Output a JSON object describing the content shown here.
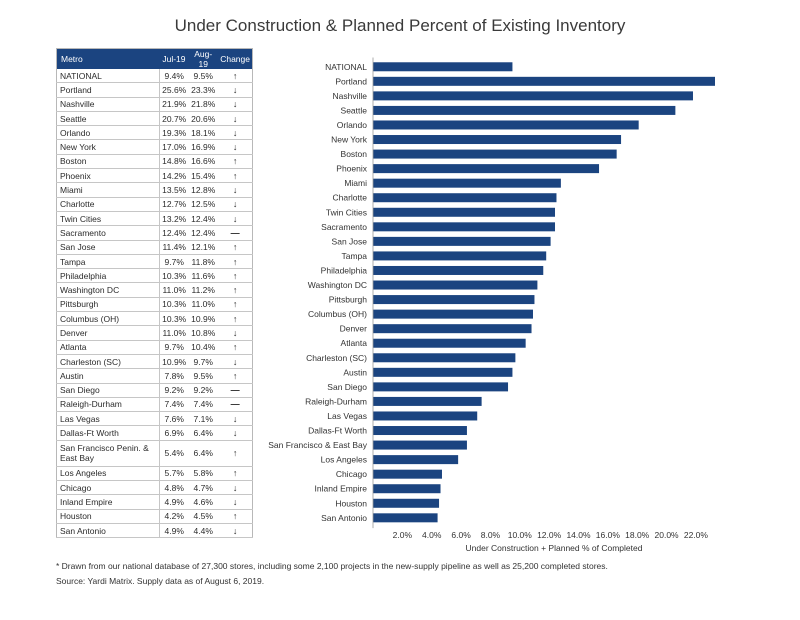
{
  "title": "Under Construction & Planned Percent of Existing Inventory",
  "table": {
    "headers": [
      "Metro",
      "Jul-19",
      "Aug-19",
      "Change"
    ],
    "rows": [
      {
        "metro": "NATIONAL",
        "jul": "9.4%",
        "aug": "9.5%",
        "change": "up"
      },
      {
        "metro": "Portland",
        "jul": "25.6%",
        "aug": "23.3%",
        "change": "down"
      },
      {
        "metro": "Nashville",
        "jul": "21.9%",
        "aug": "21.8%",
        "change": "down"
      },
      {
        "metro": "Seattle",
        "jul": "20.7%",
        "aug": "20.6%",
        "change": "down"
      },
      {
        "metro": "Orlando",
        "jul": "19.3%",
        "aug": "18.1%",
        "change": "down"
      },
      {
        "metro": "New York",
        "jul": "17.0%",
        "aug": "16.9%",
        "change": "down"
      },
      {
        "metro": "Boston",
        "jul": "14.8%",
        "aug": "16.6%",
        "change": "up"
      },
      {
        "metro": "Phoenix",
        "jul": "14.2%",
        "aug": "15.4%",
        "change": "up"
      },
      {
        "metro": "Miami",
        "jul": "13.5%",
        "aug": "12.8%",
        "change": "down"
      },
      {
        "metro": "Charlotte",
        "jul": "12.7%",
        "aug": "12.5%",
        "change": "down"
      },
      {
        "metro": "Twin Cities",
        "jul": "13.2%",
        "aug": "12.4%",
        "change": "down"
      },
      {
        "metro": "Sacramento",
        "jul": "12.4%",
        "aug": "12.4%",
        "change": "flat"
      },
      {
        "metro": "San Jose",
        "jul": "11.4%",
        "aug": "12.1%",
        "change": "up"
      },
      {
        "metro": "Tampa",
        "jul": "9.7%",
        "aug": "11.8%",
        "change": "up"
      },
      {
        "metro": "Philadelphia",
        "jul": "10.3%",
        "aug": "11.6%",
        "change": "up"
      },
      {
        "metro": "Washington DC",
        "jul": "11.0%",
        "aug": "11.2%",
        "change": "up"
      },
      {
        "metro": "Pittsburgh",
        "jul": "10.3%",
        "aug": "11.0%",
        "change": "up"
      },
      {
        "metro": "Columbus (OH)",
        "jul": "10.3%",
        "aug": "10.9%",
        "change": "up"
      },
      {
        "metro": "Denver",
        "jul": "11.0%",
        "aug": "10.8%",
        "change": "down"
      },
      {
        "metro": "Atlanta",
        "jul": "9.7%",
        "aug": "10.4%",
        "change": "up"
      },
      {
        "metro": "Charleston (SC)",
        "jul": "10.9%",
        "aug": "9.7%",
        "change": "down"
      },
      {
        "metro": "Austin",
        "jul": "7.8%",
        "aug": "9.5%",
        "change": "up"
      },
      {
        "metro": "San Diego",
        "jul": "9.2%",
        "aug": "9.2%",
        "change": "flat"
      },
      {
        "metro": "Raleigh-Durham",
        "jul": "7.4%",
        "aug": "7.4%",
        "change": "flat"
      },
      {
        "metro": "Las Vegas",
        "jul": "7.6%",
        "aug": "7.1%",
        "change": "down"
      },
      {
        "metro": "Dallas-Ft Worth",
        "jul": "6.9%",
        "aug": "6.4%",
        "change": "down"
      },
      {
        "metro": "San Francisco Penin. & East Bay",
        "jul": "5.4%",
        "aug": "6.4%",
        "change": "up"
      },
      {
        "metro": "Los Angeles",
        "jul": "5.7%",
        "aug": "5.8%",
        "change": "up"
      },
      {
        "metro": "Chicago",
        "jul": "4.8%",
        "aug": "4.7%",
        "change": "down"
      },
      {
        "metro": "Inland Empire",
        "jul": "4.9%",
        "aug": "4.6%",
        "change": "down"
      },
      {
        "metro": "Houston",
        "jul": "4.2%",
        "aug": "4.5%",
        "change": "up"
      },
      {
        "metro": "San Antonio",
        "jul": "4.9%",
        "aug": "4.4%",
        "change": "down"
      }
    ]
  },
  "chart_data": {
    "type": "bar",
    "orientation": "horizontal",
    "categories": [
      "NATIONAL",
      "Portland",
      "Nashville",
      "Seattle",
      "Orlando",
      "New York",
      "Boston",
      "Phoenix",
      "Miami",
      "Charlotte",
      "Twin Cities",
      "Sacramento",
      "San Jose",
      "Tampa",
      "Philadelphia",
      "Washington DC",
      "Pittsburgh",
      "Columbus (OH)",
      "Denver",
      "Atlanta",
      "Charleston (SC)",
      "Austin",
      "San Diego",
      "Raleigh-Durham",
      "Las Vegas",
      "Dallas-Ft Worth",
      "San Francisco & East Bay",
      "Los Angeles",
      "Chicago",
      "Inland Empire",
      "Houston",
      "San Antonio"
    ],
    "values": [
      9.5,
      23.3,
      21.8,
      20.6,
      18.1,
      16.9,
      16.6,
      15.4,
      12.8,
      12.5,
      12.4,
      12.4,
      12.1,
      11.8,
      11.6,
      11.2,
      11.0,
      10.9,
      10.8,
      10.4,
      9.7,
      9.5,
      9.2,
      7.4,
      7.1,
      6.4,
      6.4,
      5.8,
      4.7,
      4.6,
      4.5,
      4.4
    ],
    "xticks": [
      "2.0%",
      "4.0%",
      "6.0%",
      "8.0%",
      "10.0%",
      "12.0%",
      "14.0%",
      "16.0%",
      "18.0%",
      "20.0%",
      "22.0%"
    ],
    "xtick_values": [
      2,
      4,
      6,
      8,
      10,
      12,
      14,
      16,
      18,
      20,
      22
    ],
    "xlim": [
      0,
      23.3
    ],
    "xlabel": "Under Construction + Planned % of Completed",
    "ylabel": "",
    "title": "",
    "bar_color": "#1b4480",
    "grid": false
  },
  "footnotes": {
    "note": "* Drawn from our national database of 27,300 stores, including some 2,100 projects in the new-supply pipeline as well as 25,200 completed stores.",
    "source": "Source: Yardi Matrix. Supply data as of August 6, 2019."
  },
  "colors": {
    "header": "#1b4480",
    "bar": "#1b4480",
    "text": "#2b2b2b"
  }
}
